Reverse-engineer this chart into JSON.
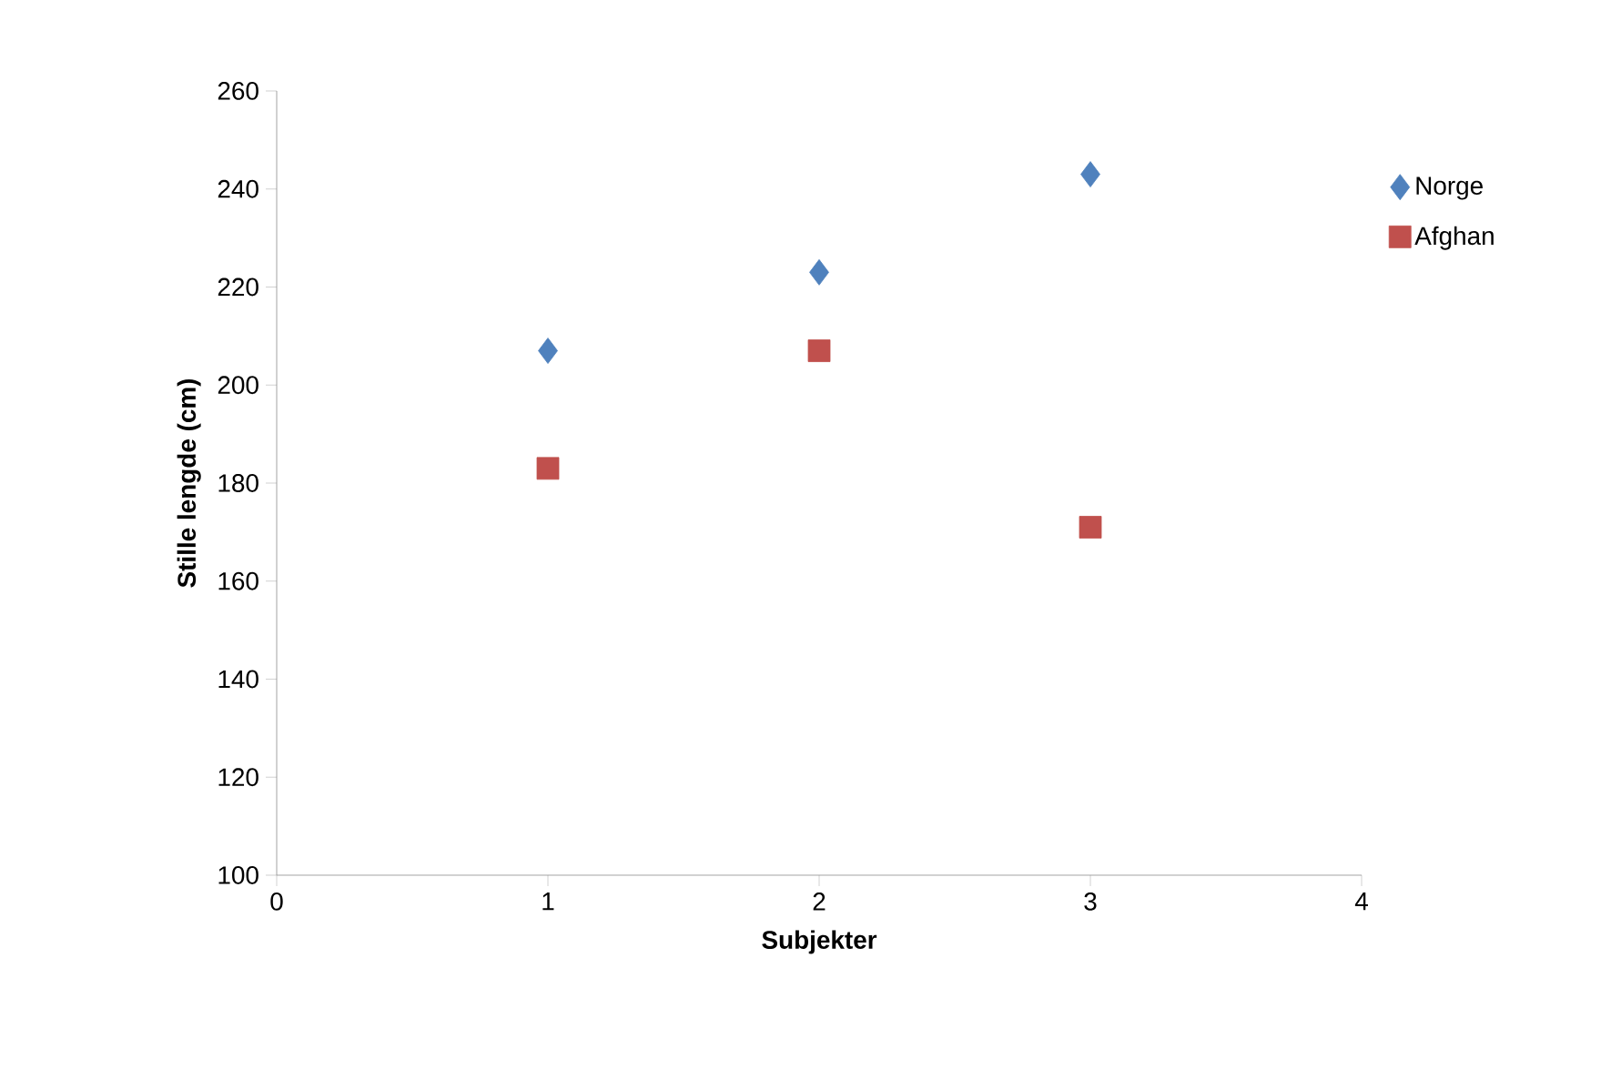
{
  "chart_data": {
    "type": "scatter",
    "xlabel": "Subjekter",
    "ylabel": "Stille lengde (cm)",
    "x": [
      1,
      2,
      3
    ],
    "xlim": [
      0,
      4
    ],
    "xticks": [
      0,
      1,
      2,
      3,
      4
    ],
    "ylim": [
      100,
      260
    ],
    "yticks": [
      100,
      120,
      140,
      160,
      180,
      200,
      220,
      240,
      260
    ],
    "grid": false,
    "legend": "right",
    "series": [
      {
        "name": "Norge",
        "color": "#4f81bd",
        "marker": "diamond",
        "values": [
          207,
          223,
          243
        ]
      },
      {
        "name": "Afghan",
        "color": "#c0504d",
        "marker": "square",
        "values": [
          183,
          207,
          171
        ]
      }
    ]
  }
}
